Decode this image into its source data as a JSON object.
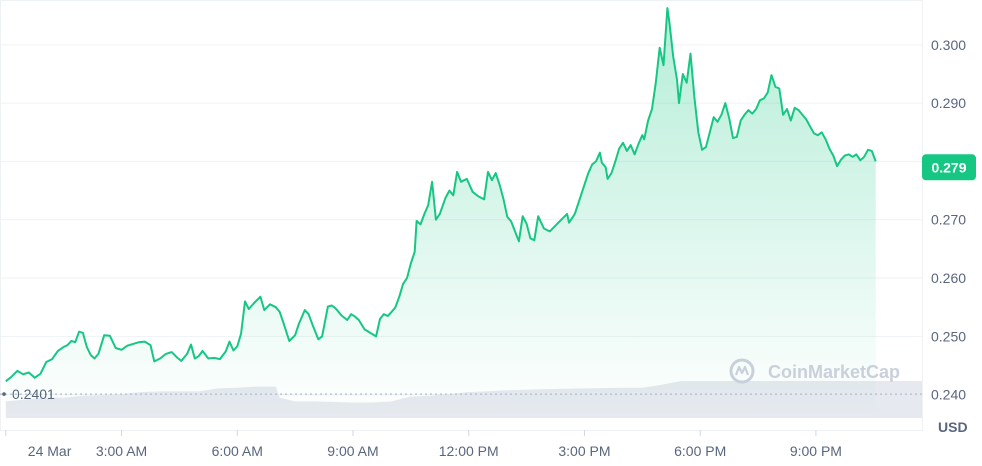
{
  "chart_data": {
    "type": "area",
    "currency_label": "USD",
    "ylim": [
      0.236,
      0.307
    ],
    "y_ticks": [
      {
        "value": 0.3,
        "label": "0.300"
      },
      {
        "value": 0.29,
        "label": "0.290"
      },
      {
        "value": 0.28,
        "label": "0.280"
      },
      {
        "value": 0.27,
        "label": "0.270"
      },
      {
        "value": 0.26,
        "label": "0.260"
      },
      {
        "value": 0.25,
        "label": "0.250"
      },
      {
        "value": 0.24,
        "label": "0.240"
      }
    ],
    "x_ticks": [
      {
        "hour": 0,
        "label": "24 Mar"
      },
      {
        "hour": 3,
        "label": "3:00 AM"
      },
      {
        "hour": 6,
        "label": "6:00 AM"
      },
      {
        "hour": 9,
        "label": "9:00 AM"
      },
      {
        "hour": 12,
        "label": "12:00 PM"
      },
      {
        "hour": 15,
        "label": "3:00 PM"
      },
      {
        "hour": 18,
        "label": "6:00 PM"
      },
      {
        "hour": 21,
        "label": "9:00 PM"
      }
    ],
    "xlim_hours": [
      -0.15,
      23.75
    ],
    "open_price": {
      "value": 0.2401,
      "label": "0.2401"
    },
    "current_price": {
      "value": 0.279,
      "label": "0.279"
    },
    "watermark": "CoinMarketCap",
    "colors": {
      "line": "#16c784",
      "badge": "#16c784",
      "grid": "#eff2f5",
      "volume": "#e6e9ef"
    },
    "series": [
      {
        "values": [
          [
            0.0,
            0.2423
          ],
          [
            0.15,
            0.2431
          ],
          [
            0.3,
            0.2441
          ],
          [
            0.45,
            0.2435
          ],
          [
            0.6,
            0.2438
          ],
          [
            0.75,
            0.2429
          ],
          [
            0.9,
            0.2436
          ],
          [
            1.05,
            0.2456
          ],
          [
            1.2,
            0.2461
          ],
          [
            1.35,
            0.2475
          ],
          [
            1.5,
            0.2482
          ],
          [
            1.6,
            0.2485
          ],
          [
            1.7,
            0.2492
          ],
          [
            1.8,
            0.249
          ],
          [
            1.9,
            0.2508
          ],
          [
            2.0,
            0.2506
          ],
          [
            2.1,
            0.2482
          ],
          [
            2.2,
            0.2468
          ],
          [
            2.3,
            0.2462
          ],
          [
            2.4,
            0.247
          ],
          [
            2.55,
            0.2502
          ],
          [
            2.7,
            0.2501
          ],
          [
            2.85,
            0.248
          ],
          [
            3.0,
            0.2477
          ],
          [
            3.15,
            0.2484
          ],
          [
            3.3,
            0.2487
          ],
          [
            3.45,
            0.249
          ],
          [
            3.6,
            0.2491
          ],
          [
            3.75,
            0.2485
          ],
          [
            3.85,
            0.2457
          ],
          [
            4.0,
            0.2462
          ],
          [
            4.15,
            0.247
          ],
          [
            4.3,
            0.2473
          ],
          [
            4.45,
            0.2463
          ],
          [
            4.55,
            0.2458
          ],
          [
            4.7,
            0.247
          ],
          [
            4.8,
            0.2486
          ],
          [
            4.9,
            0.2462
          ],
          [
            5.0,
            0.2466
          ],
          [
            5.1,
            0.2475
          ],
          [
            5.25,
            0.2462
          ],
          [
            5.4,
            0.2463
          ],
          [
            5.55,
            0.2461
          ],
          [
            5.7,
            0.2474
          ],
          [
            5.8,
            0.2491
          ],
          [
            5.9,
            0.2476
          ],
          [
            6.0,
            0.2483
          ],
          [
            6.1,
            0.2505
          ],
          [
            6.2,
            0.256
          ],
          [
            6.3,
            0.2547
          ],
          [
            6.45,
            0.2558
          ],
          [
            6.6,
            0.2568
          ],
          [
            6.7,
            0.2545
          ],
          [
            6.85,
            0.2555
          ],
          [
            7.0,
            0.255
          ],
          [
            7.1,
            0.2542
          ],
          [
            7.2,
            0.2523
          ],
          [
            7.35,
            0.2492
          ],
          [
            7.5,
            0.2502
          ],
          [
            7.6,
            0.2522
          ],
          [
            7.75,
            0.2545
          ],
          [
            7.85,
            0.2538
          ],
          [
            7.95,
            0.252
          ],
          [
            8.1,
            0.2495
          ],
          [
            8.2,
            0.25
          ],
          [
            8.35,
            0.2551
          ],
          [
            8.45,
            0.2553
          ],
          [
            8.55,
            0.2548
          ],
          [
            8.7,
            0.2536
          ],
          [
            8.85,
            0.2528
          ],
          [
            8.95,
            0.2538
          ],
          [
            9.05,
            0.2534
          ],
          [
            9.15,
            0.2528
          ],
          [
            9.3,
            0.2512
          ],
          [
            9.45,
            0.2506
          ],
          [
            9.6,
            0.25
          ],
          [
            9.7,
            0.253
          ],
          [
            9.8,
            0.2538
          ],
          [
            9.9,
            0.2535
          ],
          [
            10.0,
            0.2542
          ],
          [
            10.1,
            0.255
          ],
          [
            10.2,
            0.2568
          ],
          [
            10.3,
            0.259
          ],
          [
            10.4,
            0.26
          ],
          [
            10.5,
            0.2625
          ],
          [
            10.6,
            0.2645
          ],
          [
            10.65,
            0.2698
          ],
          [
            10.75,
            0.2692
          ],
          [
            10.85,
            0.271
          ],
          [
            10.95,
            0.2725
          ],
          [
            11.05,
            0.2765
          ],
          [
            11.15,
            0.27
          ],
          [
            11.25,
            0.271
          ],
          [
            11.4,
            0.2738
          ],
          [
            11.5,
            0.275
          ],
          [
            11.6,
            0.2742
          ],
          [
            11.7,
            0.2782
          ],
          [
            11.8,
            0.2765
          ],
          [
            11.95,
            0.277
          ],
          [
            12.1,
            0.2748
          ],
          [
            12.25,
            0.274
          ],
          [
            12.4,
            0.2735
          ],
          [
            12.5,
            0.2782
          ],
          [
            12.6,
            0.2768
          ],
          [
            12.7,
            0.278
          ],
          [
            12.8,
            0.276
          ],
          [
            12.9,
            0.2736
          ],
          [
            13.0,
            0.2705
          ],
          [
            13.1,
            0.2697
          ],
          [
            13.2,
            0.268
          ],
          [
            13.3,
            0.2663
          ],
          [
            13.4,
            0.2706
          ],
          [
            13.5,
            0.2693
          ],
          [
            13.6,
            0.2668
          ],
          [
            13.7,
            0.2665
          ],
          [
            13.8,
            0.2706
          ],
          [
            13.95,
            0.2685
          ],
          [
            14.1,
            0.268
          ],
          [
            14.25,
            0.269
          ],
          [
            14.4,
            0.27
          ],
          [
            14.55,
            0.271
          ],
          [
            14.6,
            0.2695
          ],
          [
            14.75,
            0.271
          ],
          [
            14.9,
            0.274
          ],
          [
            15.0,
            0.276
          ],
          [
            15.1,
            0.278
          ],
          [
            15.2,
            0.2795
          ],
          [
            15.3,
            0.28
          ],
          [
            15.4,
            0.2815
          ],
          [
            15.45,
            0.2798
          ],
          [
            15.55,
            0.279
          ],
          [
            15.6,
            0.277
          ],
          [
            15.7,
            0.278
          ],
          [
            15.8,
            0.28
          ],
          [
            15.9,
            0.2822
          ],
          [
            16.0,
            0.2832
          ],
          [
            16.1,
            0.2818
          ],
          [
            16.2,
            0.2828
          ],
          [
            16.3,
            0.2812
          ],
          [
            16.4,
            0.283
          ],
          [
            16.5,
            0.2845
          ],
          [
            16.55,
            0.2838
          ],
          [
            16.65,
            0.287
          ],
          [
            16.75,
            0.289
          ],
          [
            16.85,
            0.2935
          ],
          [
            16.95,
            0.2995
          ],
          [
            17.05,
            0.2965
          ],
          [
            17.15,
            0.3063
          ],
          [
            17.2,
            0.304
          ],
          [
            17.3,
            0.298
          ],
          [
            17.4,
            0.294
          ],
          [
            17.45,
            0.29
          ],
          [
            17.55,
            0.295
          ],
          [
            17.65,
            0.2935
          ],
          [
            17.75,
            0.2985
          ],
          [
            17.85,
            0.291
          ],
          [
            17.95,
            0.285
          ],
          [
            18.05,
            0.282
          ],
          [
            18.15,
            0.2825
          ],
          [
            18.25,
            0.285
          ],
          [
            18.35,
            0.2876
          ],
          [
            18.45,
            0.2868
          ],
          [
            18.55,
            0.288
          ],
          [
            18.65,
            0.29
          ],
          [
            18.75,
            0.2875
          ],
          [
            18.85,
            0.284
          ],
          [
            18.95,
            0.2842
          ],
          [
            19.05,
            0.287
          ],
          [
            19.15,
            0.288
          ],
          [
            19.25,
            0.2888
          ],
          [
            19.35,
            0.2882
          ],
          [
            19.45,
            0.289
          ],
          [
            19.55,
            0.2905
          ],
          [
            19.65,
            0.2908
          ],
          [
            19.75,
            0.2918
          ],
          [
            19.85,
            0.2948
          ],
          [
            19.95,
            0.2928
          ],
          [
            20.05,
            0.2925
          ],
          [
            20.15,
            0.288
          ],
          [
            20.25,
            0.289
          ],
          [
            20.35,
            0.287
          ],
          [
            20.45,
            0.2892
          ],
          [
            20.55,
            0.2888
          ],
          [
            20.65,
            0.288
          ],
          [
            20.75,
            0.2872
          ],
          [
            20.85,
            0.286
          ],
          [
            20.95,
            0.2848
          ],
          [
            21.05,
            0.2845
          ],
          [
            21.15,
            0.285
          ],
          [
            21.25,
            0.2838
          ],
          [
            21.35,
            0.2822
          ],
          [
            21.45,
            0.281
          ],
          [
            21.55,
            0.2792
          ],
          [
            21.65,
            0.2803
          ],
          [
            21.75,
            0.281
          ],
          [
            21.85,
            0.2812
          ],
          [
            21.95,
            0.2808
          ],
          [
            22.05,
            0.2812
          ],
          [
            22.15,
            0.2802
          ],
          [
            22.25,
            0.2808
          ],
          [
            22.35,
            0.282
          ],
          [
            22.45,
            0.2818
          ],
          [
            22.55,
            0.28
          ]
        ]
      }
    ],
    "volume": [
      [
        0.0,
        0.45
      ],
      [
        0.5,
        0.5
      ],
      [
        1.0,
        0.55
      ],
      [
        1.5,
        0.55
      ],
      [
        2.0,
        0.6
      ],
      [
        2.5,
        0.62
      ],
      [
        3.0,
        0.65
      ],
      [
        3.5,
        0.7
      ],
      [
        4.0,
        0.72
      ],
      [
        4.5,
        0.72
      ],
      [
        5.0,
        0.72
      ],
      [
        5.5,
        0.8
      ],
      [
        6.0,
        0.82
      ],
      [
        6.5,
        0.85
      ],
      [
        7.0,
        0.85
      ],
      [
        7.1,
        0.55
      ],
      [
        7.5,
        0.45
      ],
      [
        8.0,
        0.45
      ],
      [
        9.0,
        0.42
      ],
      [
        9.5,
        0.42
      ],
      [
        10.0,
        0.45
      ],
      [
        10.5,
        0.58
      ],
      [
        11.0,
        0.6
      ],
      [
        12.0,
        0.7
      ],
      [
        13.0,
        0.75
      ],
      [
        14.0,
        0.78
      ],
      [
        15.0,
        0.8
      ],
      [
        16.0,
        0.82
      ],
      [
        16.5,
        0.82
      ],
      [
        17.0,
        0.9
      ],
      [
        17.5,
        1.0
      ],
      [
        19.0,
        1.0
      ],
      [
        21.0,
        1.0
      ],
      [
        22.5,
        1.0
      ]
    ]
  }
}
